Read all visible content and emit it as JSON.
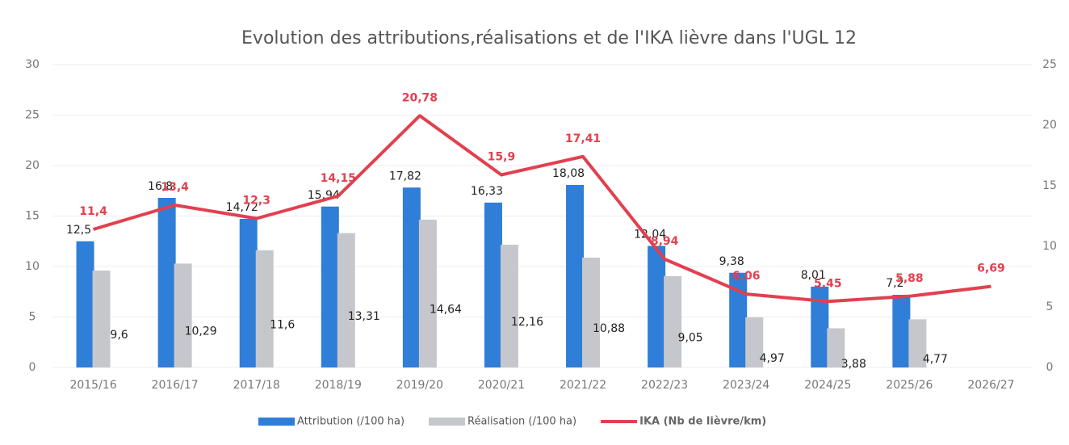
{
  "chart_data": {
    "type": "bar_line",
    "title": "Evolution des attributions,réalisations et de l'IKA lièvre dans l'UGL 12",
    "categories": [
      "2015/16",
      "2016/17",
      "2017/18",
      "2018/19",
      "2019/20",
      "2020/21",
      "2021/22",
      "2022/23",
      "2023/24",
      "2024/25",
      "2025/26",
      "2026/27"
    ],
    "series": [
      {
        "name": "Attribution (/100 ha)",
        "color": "#2f7ed8",
        "type": "bar",
        "values": [
          12.5,
          16.8,
          14.72,
          15.94,
          17.82,
          16.33,
          18.08,
          12.04,
          9.38,
          8.01,
          7.2,
          null
        ],
        "value_labels": [
          "12,5",
          "16,8",
          "14,72",
          "15,94",
          "17,82",
          "16,33",
          "18,08",
          "12,04",
          "9,38",
          "8,01",
          "7,2",
          null
        ]
      },
      {
        "name": "Réalisation (/100 ha)",
        "color": "#c6c7cc",
        "type": "bar",
        "values": [
          9.6,
          10.29,
          11.6,
          13.31,
          14.64,
          12.16,
          10.88,
          9.05,
          4.97,
          3.88,
          4.77,
          null
        ],
        "value_labels": [
          "9,6",
          "10,29",
          "11,6",
          "13,31",
          "14,64",
          "12,16",
          "10,88",
          "9,05",
          "4,97",
          "3,88",
          "4,77",
          null
        ]
      },
      {
        "name": "IKA (Nb de lièvre/km)",
        "color": "#e2404f",
        "type": "line",
        "axis": "y2",
        "values": [
          11.4,
          13.4,
          12.3,
          14.15,
          20.78,
          15.9,
          17.41,
          8.94,
          6.06,
          5.45,
          5.88,
          6.69
        ],
        "value_labels": [
          "11,4",
          "13,4",
          "12,3",
          "14,15",
          "20,78",
          "15,9",
          "17,41",
          "8,94",
          "6,06",
          "5,45",
          "5,88",
          "6,69"
        ]
      }
    ],
    "ylim": [
      0,
      30
    ],
    "yticks": [
      0,
      5,
      10,
      15,
      20,
      25,
      30
    ],
    "y2lim": [
      0,
      25
    ],
    "y2ticks": [
      0,
      5,
      10,
      15,
      20,
      25
    ],
    "grid": true,
    "legend": "bottom"
  }
}
